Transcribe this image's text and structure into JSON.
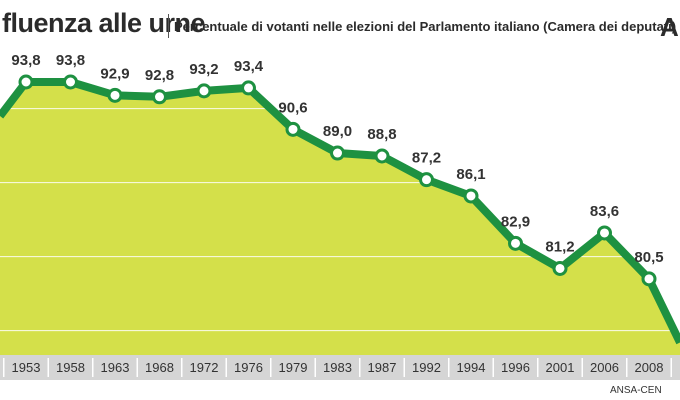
{
  "header": {
    "title": "fluenza alle urne",
    "subtitle": "Percentuale di votanti nelle elezioni del Parlamento italiano (Camera dei deputati)",
    "corner_mark": "A"
  },
  "credit": "ANSA-CEN",
  "colors": {
    "area": "#d4e04a",
    "line": "#1e9141",
    "marker_fill": "#ffffff",
    "axis_bar": "#d5d5d5",
    "gridline": "#ffffff"
  },
  "chart_data": {
    "type": "line",
    "title": "",
    "xlabel": "",
    "ylabel": "",
    "ylim": [
      75,
      98
    ],
    "grid": true,
    "categories": [
      "1953",
      "1958",
      "1963",
      "1968",
      "1972",
      "1976",
      "1979",
      "1983",
      "1987",
      "1992",
      "1994",
      "1996",
      "2001",
      "2006",
      "2008"
    ],
    "values": [
      93.8,
      93.8,
      92.9,
      92.8,
      93.2,
      93.4,
      90.6,
      89.0,
      88.8,
      87.2,
      86.1,
      82.9,
      81.2,
      83.6,
      80.5
    ],
    "value_labels": [
      "93,8",
      "93,8",
      "92,9",
      "92,8",
      "93,2",
      "93,4",
      "90,6",
      "89,0",
      "88,8",
      "87,2",
      "86,1",
      "82,9",
      "81,2",
      "83,6",
      "80,5"
    ]
  }
}
